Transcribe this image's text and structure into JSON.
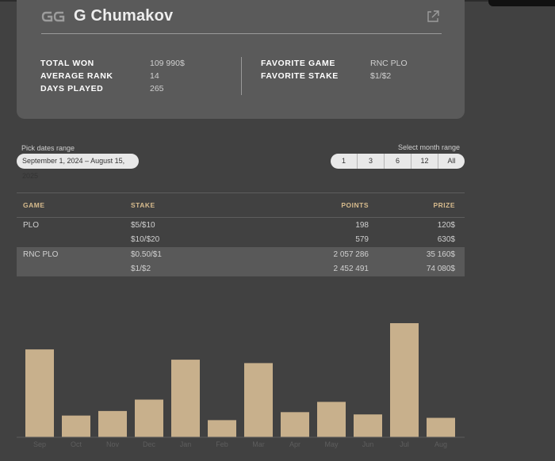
{
  "player": {
    "name": "G Chumakov",
    "logo_text": "GG"
  },
  "stats": {
    "left": [
      {
        "label": "TOTAL WON",
        "value": "109 990$"
      },
      {
        "label": "AVERAGE RANK",
        "value": "14"
      },
      {
        "label": "DAYS PLAYED",
        "value": "265"
      }
    ],
    "right": [
      {
        "label": "FAVORITE GAME",
        "value": "RNC PLO"
      },
      {
        "label": "FAVORITE STAKE",
        "value": "$1/$2"
      }
    ]
  },
  "filters": {
    "dates_label": "Pick dates range",
    "dates_value": "September 1, 2024 – August 15, 2025",
    "month_label": "Select month range",
    "month_options": [
      "1",
      "3",
      "6",
      "12",
      "All"
    ]
  },
  "table": {
    "headers": {
      "game": "GAME",
      "stake": "STAKE",
      "points": "POINTS",
      "prize": "PRIZE"
    },
    "rows": [
      {
        "game": "PLO",
        "stake": "$5/$10",
        "points": "198",
        "prize": "120$"
      },
      {
        "game": "",
        "stake": "$10/$20",
        "points": "579",
        "prize": "630$"
      },
      {
        "game": "RNC PLO",
        "stake": "$0.50/$1",
        "points": "2 057 286",
        "prize": "35 160$"
      },
      {
        "game": "",
        "stake": "$1/$2",
        "points": "2 452 491",
        "prize": "74 080$"
      }
    ]
  },
  "chart_data": {
    "type": "bar",
    "categories": [
      "Sep",
      "Oct",
      "Nov",
      "Dec",
      "Jan",
      "Feb",
      "Mar",
      "Apr",
      "May",
      "Jun",
      "Jul",
      "Aug"
    ],
    "values": [
      77,
      19,
      23,
      33,
      68,
      15,
      65,
      22,
      31,
      20,
      100,
      17
    ],
    "ylim": [
      0,
      100
    ],
    "grid": false,
    "bar_color": "#c8b08c",
    "tick_color": "#5e5e5e"
  },
  "colors": {
    "background": "#414141",
    "card": "#5a5a5a",
    "accent": "#d7bb8d"
  },
  "icons": {
    "external": "external-link-icon"
  }
}
